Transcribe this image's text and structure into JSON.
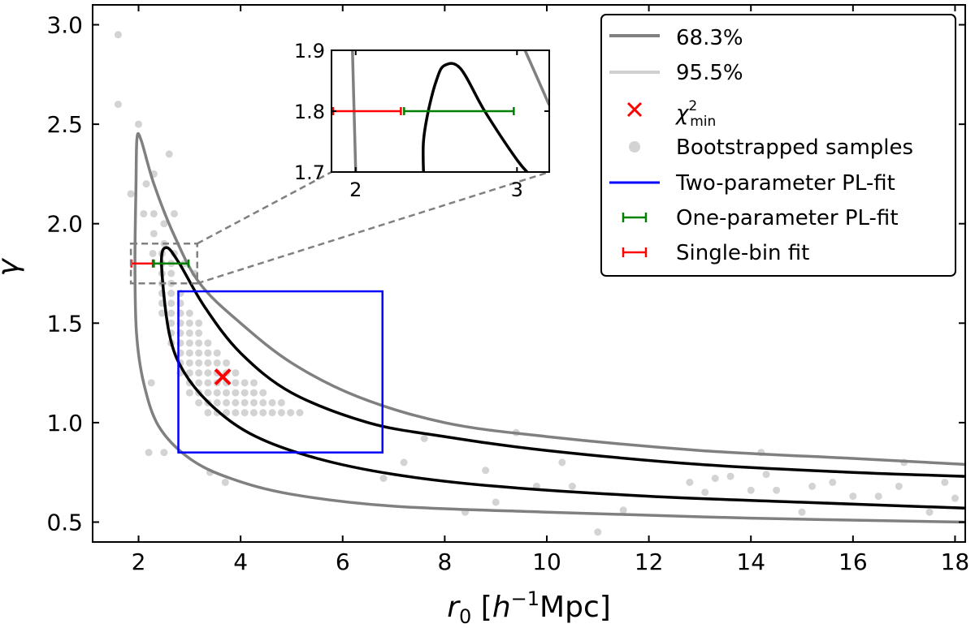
{
  "chart_data": {
    "type": "scatter",
    "xlabel": "r",
    "xlabel_sub": "0",
    "xlabel_unit_open": " [",
    "xlabel_h": "h",
    "xlabel_sup": "−1",
    "xlabel_unit_close": "Mpc]",
    "ylabel": "γ",
    "xlim": [
      1.1,
      18.2
    ],
    "ylim": [
      0.4,
      3.1
    ],
    "xticks": [
      "2",
      "4",
      "6",
      "8",
      "10",
      "12",
      "14",
      "16",
      "18"
    ],
    "xtick_values": [
      2,
      4,
      6,
      8,
      10,
      12,
      14,
      16,
      18
    ],
    "yticks": [
      "0.5",
      "1.0",
      "1.5",
      "2.0",
      "2.5",
      "3.0"
    ],
    "ytick_values": [
      0.5,
      1.0,
      1.5,
      2.0,
      2.5,
      3.0
    ],
    "legend_position": "top-right",
    "legend": {
      "c68": "68.3%",
      "c95": "95.5%",
      "chi_symbol": "χ",
      "chi_sup": "2",
      "chi_sub": "min",
      "boot": "Bootstrapped samples",
      "twofit": "Two-parameter PL-fit",
      "onefit": "One-parameter PL-fit",
      "single": "Single-bin fit"
    },
    "colors": {
      "c68": "#000000",
      "c95": "#808080",
      "chi": "#ff0000",
      "boot": "#d3d3d3",
      "twofit": "#0000ff",
      "onefit": "#008000",
      "single": "#ff0000",
      "zoombox": "#808080",
      "legend_c95_line": "#d0d0d0"
    },
    "chi2_min": {
      "x": 3.65,
      "y": 1.23
    },
    "two_param_box": {
      "x": [
        2.78,
        6.78
      ],
      "y": [
        0.85,
        1.66
      ]
    },
    "one_param_fit": {
      "x": [
        2.3,
        2.98
      ],
      "y": 1.8
    },
    "single_bin_fit": {
      "x": [
        1.86,
        2.28
      ],
      "y": 1.8
    },
    "zoom_region": {
      "x": [
        1.85,
        3.15
      ],
      "y": [
        1.7,
        1.9
      ]
    },
    "contour_68": {
      "left_branch": [
        [
          2.45,
          1.8
        ],
        [
          2.6,
          1.45
        ],
        [
          2.9,
          1.25
        ],
        [
          3.5,
          1.07
        ],
        [
          4.3,
          0.93
        ],
        [
          5.5,
          0.82
        ],
        [
          7.0,
          0.74
        ],
        [
          9.0,
          0.68
        ],
        [
          12.0,
          0.63
        ],
        [
          15.0,
          0.6
        ],
        [
          18.2,
          0.57
        ]
      ],
      "right_branch": [
        [
          2.45,
          1.8
        ],
        [
          2.55,
          1.88
        ],
        [
          2.8,
          1.8
        ],
        [
          3.3,
          1.58
        ],
        [
          4.0,
          1.35
        ],
        [
          5.0,
          1.15
        ],
        [
          6.5,
          1.0
        ],
        [
          8.0,
          0.93
        ],
        [
          10.0,
          0.86
        ],
        [
          13.0,
          0.79
        ],
        [
          16.0,
          0.75
        ],
        [
          18.2,
          0.73
        ]
      ]
    },
    "contour_95": {
      "left_branch": [
        [
          1.97,
          2.43
        ],
        [
          1.95,
          2.2
        ],
        [
          1.93,
          1.8
        ],
        [
          1.96,
          1.45
        ],
        [
          2.1,
          1.2
        ],
        [
          2.4,
          0.98
        ],
        [
          3.0,
          0.82
        ],
        [
          3.8,
          0.72
        ],
        [
          5.0,
          0.64
        ],
        [
          7.0,
          0.58
        ],
        [
          10.0,
          0.55
        ],
        [
          14.0,
          0.52
        ],
        [
          18.2,
          0.5
        ]
      ],
      "right_branch": [
        [
          1.97,
          2.43
        ],
        [
          2.05,
          2.42
        ],
        [
          2.3,
          2.2
        ],
        [
          2.7,
          1.94
        ],
        [
          3.2,
          1.7
        ],
        [
          4.0,
          1.5
        ],
        [
          5.0,
          1.3
        ],
        [
          6.3,
          1.13
        ],
        [
          8.0,
          1.0
        ],
        [
          10.0,
          0.93
        ],
        [
          13.0,
          0.86
        ],
        [
          16.0,
          0.82
        ],
        [
          18.2,
          0.79
        ]
      ]
    },
    "bootstrapped_samples": [
      [
        1.6,
        2.95
      ],
      [
        1.6,
        2.6
      ],
      [
        2.0,
        2.5
      ],
      [
        1.85,
        2.15
      ],
      [
        2.15,
        2.2
      ],
      [
        2.3,
        2.25
      ],
      [
        2.6,
        2.35
      ],
      [
        2.1,
        2.05
      ],
      [
        2.3,
        2.05
      ],
      [
        2.5,
        2.0
      ],
      [
        2.7,
        2.05
      ],
      [
        2.3,
        1.95
      ],
      [
        2.5,
        1.9
      ],
      [
        2.7,
        1.85
      ],
      [
        2.9,
        1.8
      ],
      [
        3.1,
        1.75
      ],
      [
        2.25,
        1.2
      ],
      [
        2.5,
        0.85
      ],
      [
        2.2,
        0.85
      ],
      [
        3.4,
        0.75
      ],
      [
        3.7,
        0.7
      ],
      [
        8.4,
        0.55
      ],
      [
        11.0,
        0.45
      ],
      [
        10.3,
        0.8
      ],
      [
        9.0,
        0.6
      ],
      [
        9.8,
        0.68
      ],
      [
        13.1,
        0.65
      ],
      [
        13.3,
        0.72
      ],
      [
        13.6,
        0.73
      ],
      [
        14.0,
        0.66
      ],
      [
        14.3,
        0.74
      ],
      [
        14.5,
        0.66
      ],
      [
        14.2,
        0.85
      ],
      [
        15.0,
        0.55
      ],
      [
        15.2,
        0.68
      ],
      [
        16.0,
        0.63
      ],
      [
        16.5,
        0.63
      ],
      [
        17.0,
        0.8
      ],
      [
        17.5,
        0.55
      ],
      [
        17.8,
        0.7
      ],
      [
        9.4,
        0.95
      ],
      [
        10.5,
        0.68
      ],
      [
        8.8,
        0.76
      ],
      [
        7.6,
        0.92
      ],
      [
        7.2,
        0.8
      ],
      [
        6.8,
        0.72
      ],
      [
        12.8,
        0.7
      ],
      [
        11.5,
        0.56
      ],
      [
        15.6,
        0.7
      ],
      [
        16.9,
        0.68
      ],
      [
        18.0,
        0.62
      ]
    ],
    "inset": {
      "xlim": [
        1.85,
        3.2
      ],
      "ylim": [
        1.7,
        1.9
      ],
      "xticks": [
        "2",
        "3"
      ],
      "xtick_values": [
        2,
        3
      ],
      "yticks": [
        "1.7",
        "1.8",
        "1.9"
      ],
      "ytick_values": [
        1.7,
        1.8,
        1.9
      ],
      "contour_68": [
        [
          2.42,
          1.7
        ],
        [
          2.42,
          1.75
        ],
        [
          2.45,
          1.8
        ],
        [
          2.5,
          1.85
        ],
        [
          2.55,
          1.875
        ],
        [
          2.65,
          1.87
        ],
        [
          2.8,
          1.8
        ],
        [
          3.0,
          1.72
        ],
        [
          3.1,
          1.69
        ]
      ],
      "contour_95_left": [
        [
          1.98,
          1.9
        ],
        [
          1.99,
          1.8
        ],
        [
          2.0,
          1.7
        ]
      ],
      "contour_95_right": [
        [
          3.05,
          1.9
        ],
        [
          3.2,
          1.81
        ]
      ]
    }
  }
}
